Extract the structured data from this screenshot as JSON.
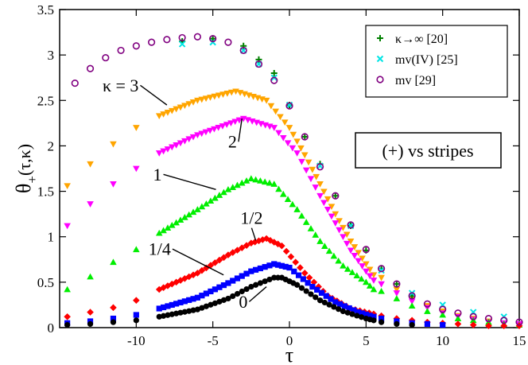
{
  "chart_data": {
    "type": "scatter",
    "xlabel": "τ",
    "ylabel_main": "θ",
    "ylabel_sub": "+",
    "ylabel_args": "(τ,κ)",
    "xlim": [
      -15,
      15
    ],
    "ylim": [
      0,
      3.5
    ],
    "x_ticks": [
      -10,
      -5,
      0,
      5,
      10,
      15
    ],
    "x_tick_labels": [
      "-10",
      "-5",
      "0",
      "5",
      "10",
      "15"
    ],
    "y_ticks": [
      0,
      0.5,
      1,
      1.5,
      2,
      2.5,
      3,
      3.5
    ],
    "y_tick_labels": [
      "0",
      "0.5",
      "1",
      "1.5",
      "2",
      "2.5",
      "3",
      "3.5"
    ],
    "grid": false,
    "legend_position": "top-right",
    "annotation_box": "(+) vs stripes",
    "series": [
      {
        "label": "κ = 3",
        "color": "#ffa500",
        "marker": "triangle-down",
        "x": [
          -14.5,
          -13,
          -11.5,
          -10,
          -8.5,
          -6,
          -3.5,
          -1.5,
          0,
          1,
          2,
          3,
          4,
          5,
          5.5,
          6,
          7,
          8,
          9,
          10,
          11,
          12,
          13,
          14,
          15
        ],
        "y": [
          1.56,
          1.8,
          2.02,
          2.2,
          2.33,
          2.5,
          2.6,
          2.5,
          2.2,
          1.9,
          1.58,
          1.25,
          0.95,
          0.7,
          0.58,
          0.55,
          0.42,
          0.32,
          0.24,
          0.18,
          0.13,
          0.1,
          0.07,
          0.05,
          0.04
        ]
      },
      {
        "label": "2",
        "color": "#ff00ff",
        "marker": "triangle-down",
        "x": [
          -14.5,
          -13,
          -11.5,
          -10,
          -8.5,
          -6,
          -3,
          -1,
          0.5,
          2,
          3,
          4,
          5,
          5.5,
          6,
          7,
          8,
          9,
          10,
          11,
          12,
          13,
          14,
          15
        ],
        "y": [
          1.12,
          1.36,
          1.58,
          1.75,
          1.92,
          2.12,
          2.3,
          2.2,
          1.92,
          1.45,
          1.15,
          0.85,
          0.62,
          0.52,
          0.48,
          0.38,
          0.29,
          0.22,
          0.16,
          0.12,
          0.09,
          0.06,
          0.05,
          0.04
        ]
      },
      {
        "label": "1",
        "color": "#00ee00",
        "marker": "triangle-up",
        "x": [
          -14.5,
          -13,
          -11.5,
          -10,
          -8.5,
          -6,
          -4,
          -2.5,
          -1,
          0.5,
          2,
          3.5,
          5,
          5.5,
          6,
          7,
          8,
          9,
          10,
          11,
          12,
          13,
          14,
          15
        ],
        "y": [
          0.42,
          0.56,
          0.72,
          0.86,
          1.04,
          1.3,
          1.52,
          1.64,
          1.58,
          1.3,
          0.95,
          0.68,
          0.5,
          0.42,
          0.4,
          0.32,
          0.24,
          0.18,
          0.14,
          0.1,
          0.08,
          0.06,
          0.04,
          0.03
        ]
      },
      {
        "label": "1/2",
        "color": "#ff0000",
        "marker": "diamond",
        "x": [
          -14.5,
          -13,
          -11.5,
          -10,
          -8.5,
          -6,
          -4,
          -2.5,
          -1.5,
          -0.5,
          1,
          2.5,
          4,
          5.5,
          6,
          7,
          8,
          9,
          10,
          11,
          12,
          13,
          14,
          15
        ],
        "y": [
          0.12,
          0.17,
          0.22,
          0.3,
          0.42,
          0.6,
          0.8,
          0.93,
          0.98,
          0.9,
          0.6,
          0.35,
          0.21,
          0.15,
          0.13,
          0.1,
          0.08,
          0.06,
          0.05,
          0.04,
          0.03,
          0.02,
          0.02,
          0.02
        ]
      },
      {
        "label": "1/4",
        "color": "#0000ff",
        "marker": "square",
        "x": [
          -14.5,
          -13,
          -11.5,
          -10,
          -8.5,
          -6,
          -4,
          -2.5,
          -1,
          0,
          1.5,
          3,
          4.5,
          5.5,
          6,
          7,
          8,
          9,
          10
        ],
        "y": [
          0.05,
          0.07,
          0.1,
          0.14,
          0.21,
          0.33,
          0.49,
          0.62,
          0.7,
          0.66,
          0.45,
          0.28,
          0.17,
          0.12,
          0.1,
          0.07,
          0.05,
          0.04,
          0.03
        ]
      },
      {
        "label": "0",
        "color": "#000000",
        "marker": "circle",
        "x": [
          -14.5,
          -13,
          -11.5,
          -10,
          -8.5,
          -6,
          -4,
          -2.5,
          -1,
          -0.5,
          0.5,
          2,
          3.5,
          5,
          5.5,
          6,
          7,
          8
        ],
        "y": [
          0.03,
          0.04,
          0.06,
          0.08,
          0.12,
          0.2,
          0.32,
          0.45,
          0.55,
          0.55,
          0.47,
          0.3,
          0.18,
          0.1,
          0.08,
          0.06,
          0.04,
          0.03
        ]
      },
      {
        "label": "κ→∞ [20]",
        "color": "#008000",
        "marker": "plus",
        "x": [
          -7,
          -5,
          -3,
          -2,
          -1,
          0,
          1,
          2,
          3,
          4,
          5,
          6,
          7,
          8
        ],
        "y": [
          3.15,
          3.18,
          3.1,
          2.95,
          2.8,
          2.45,
          2.1,
          1.8,
          1.45,
          1.12,
          0.85,
          0.65,
          0.48,
          0.35
        ]
      },
      {
        "label": "mv(IV) [25]",
        "color": "#00e5e5",
        "marker": "x",
        "x": [
          -7,
          -5,
          -3,
          -2,
          -1,
          0,
          2,
          4,
          6,
          8,
          10,
          12,
          14
        ],
        "y": [
          3.12,
          3.14,
          3.05,
          2.9,
          2.75,
          2.45,
          1.78,
          1.12,
          0.63,
          0.38,
          0.25,
          0.17,
          0.12
        ]
      },
      {
        "label": "mv [29]",
        "color": "#800080",
        "marker": "circle-open",
        "x": [
          -14,
          -13,
          -12,
          -11,
          -10,
          -9,
          -8,
          -7,
          -6,
          -5,
          -4,
          -3,
          -2,
          -1,
          0,
          1,
          2,
          3,
          4,
          5,
          6,
          7,
          8,
          9,
          10,
          11,
          12,
          13,
          14,
          15
        ],
        "y": [
          2.69,
          2.85,
          2.97,
          3.05,
          3.1,
          3.14,
          3.17,
          3.19,
          3.2,
          3.18,
          3.14,
          3.05,
          2.9,
          2.72,
          2.44,
          2.1,
          1.77,
          1.45,
          1.13,
          0.86,
          0.65,
          0.48,
          0.35,
          0.26,
          0.2,
          0.16,
          0.12,
          0.1,
          0.08,
          0.06
        ]
      }
    ],
    "curve_labels": [
      {
        "text": "κ = 3",
        "x": -12.2,
        "y": 2.6,
        "line_to": [
          -8,
          2.45
        ]
      },
      {
        "text": "2",
        "x": -4,
        "y": 1.98,
        "line_to": [
          -3.1,
          2.3
        ]
      },
      {
        "text": "1",
        "x": -8.9,
        "y": 1.62,
        "line_to": [
          -4.8,
          1.52
        ]
      },
      {
        "text": "1/2",
        "x": -3.2,
        "y": 1.14,
        "line_to": [
          -2.2,
          0.96
        ]
      },
      {
        "text": "1/4",
        "x": -9.2,
        "y": 0.8,
        "line_to": [
          -4.3,
          0.58
        ]
      },
      {
        "text": "0",
        "x": -3.3,
        "y": 0.22,
        "line_to": [
          -1.5,
          0.45
        ]
      }
    ]
  }
}
